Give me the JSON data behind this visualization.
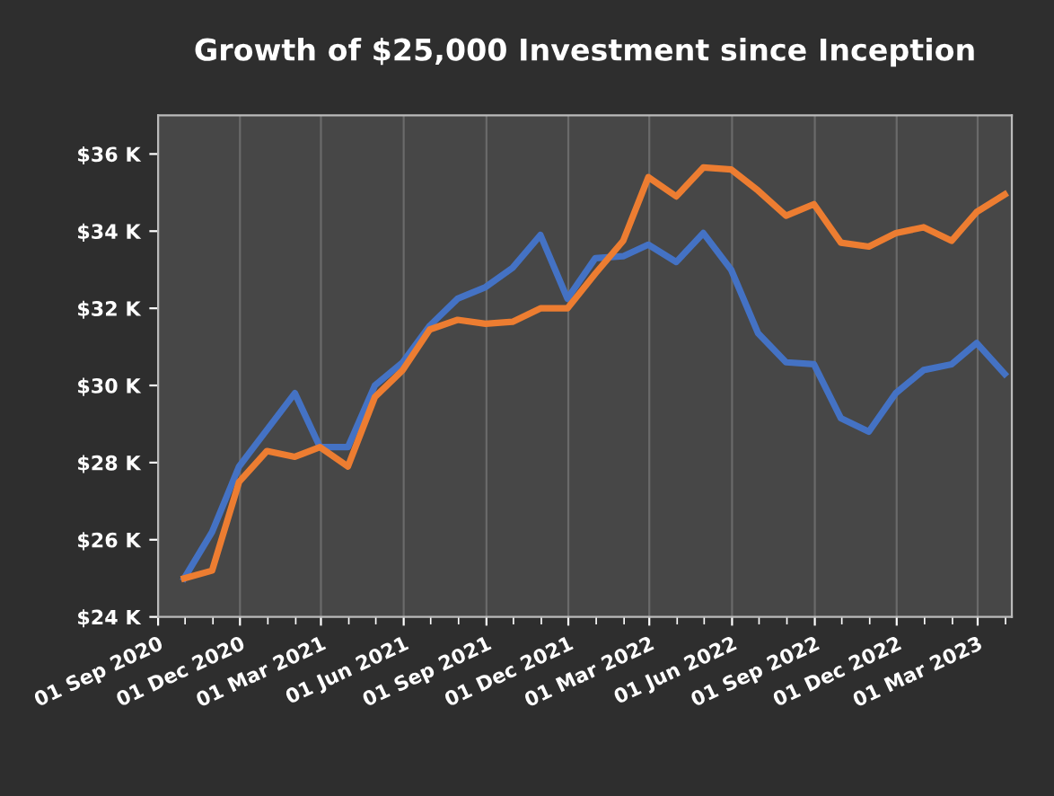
{
  "chart_data": {
    "type": "line",
    "title": "Growth of $25,000 Investment since Inception",
    "x": [
      "2020-09-30",
      "2020-10-31",
      "2020-11-30",
      "2020-12-31",
      "2021-01-31",
      "2021-02-28",
      "2021-03-31",
      "2021-04-30",
      "2021-05-31",
      "2021-06-30",
      "2021-07-31",
      "2021-08-31",
      "2021-09-30",
      "2021-10-31",
      "2021-11-30",
      "2021-12-31",
      "2022-01-31",
      "2022-02-28",
      "2022-03-31",
      "2022-04-30",
      "2022-05-31",
      "2022-06-30",
      "2022-07-31",
      "2022-08-31",
      "2022-09-30",
      "2022-10-31",
      "2022-11-30",
      "2022-12-31",
      "2023-01-31",
      "2023-02-28",
      "2023-03-31"
    ],
    "series": [
      {
        "color": "#4472c4",
        "values": [
          25000,
          26200,
          27900,
          28850,
          29800,
          28400,
          28400,
          30000,
          30600,
          31550,
          32250,
          32550,
          33050,
          33900,
          32250,
          33300,
          33350,
          33650,
          33200,
          33950,
          33000,
          31350,
          30600,
          30550,
          29150,
          28800,
          29800,
          30400,
          30550,
          31100,
          30300
        ]
      },
      {
        "color": "#ed7d31",
        "values": [
          25000,
          25200,
          27500,
          28300,
          28150,
          28400,
          27900,
          29700,
          30400,
          31450,
          31700,
          31600,
          31650,
          32000,
          32000,
          32900,
          33750,
          35400,
          34900,
          35650,
          35600,
          35050,
          34400,
          34700,
          33700,
          33600,
          33950,
          34100,
          33750,
          34500,
          34950
        ]
      }
    ],
    "xlim": [
      "2020-09-01",
      "2023-04-08"
    ],
    "xticks": [
      {
        "value": "2020-09-01",
        "label": "01 Sep 2020"
      },
      {
        "value": "2020-12-01",
        "label": "01 Dec 2020"
      },
      {
        "value": "2021-03-01",
        "label": "01 Mar 2021"
      },
      {
        "value": "2021-06-01",
        "label": "01 Jun 2021"
      },
      {
        "value": "2021-09-01",
        "label": "01 Sep 2021"
      },
      {
        "value": "2021-12-01",
        "label": "01 Dec 2021"
      },
      {
        "value": "2022-03-01",
        "label": "01 Mar 2022"
      },
      {
        "value": "2022-06-01",
        "label": "01 Jun 2022"
      },
      {
        "value": "2022-09-01",
        "label": "01 Sep 2022"
      },
      {
        "value": "2022-12-01",
        "label": "01 Dec 2022"
      },
      {
        "value": "2023-03-01",
        "label": "01 Mar 2023"
      }
    ],
    "ylim": [
      24000,
      37000
    ],
    "yticks": [
      {
        "value": 24000,
        "label": "$24 K"
      },
      {
        "value": 26000,
        "label": "$26 K"
      },
      {
        "value": 28000,
        "label": "$28 K"
      },
      {
        "value": 30000,
        "label": "$30 K"
      },
      {
        "value": 32000,
        "label": "$32 K"
      },
      {
        "value": 34000,
        "label": "$34 K"
      },
      {
        "value": 36000,
        "label": "$36 K"
      }
    ],
    "grid": "x",
    "marker": "none",
    "line_style": "solid"
  }
}
